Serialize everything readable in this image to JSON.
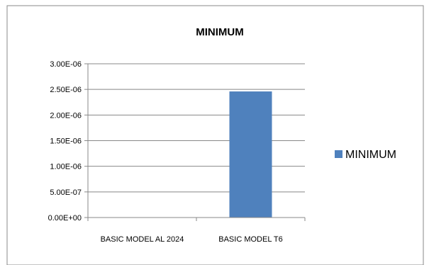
{
  "chart_data": {
    "type": "bar",
    "title": "MINIMUM",
    "categories": [
      "BASIC MODEL AL 2024",
      "BASIC MODEL T6"
    ],
    "series": [
      {
        "name": "MINIMUM",
        "values": [
          0,
          2.46e-06
        ],
        "color": "#4F81BD"
      }
    ],
    "yticks": [
      "0.00E+00",
      "5.00E-07",
      "1.00E-06",
      "1.50E-06",
      "2.00E-06",
      "2.50E-06",
      "3.00E-06"
    ],
    "ylim": [
      0,
      3e-06
    ],
    "grid": true,
    "legend": "right",
    "xlabel": "",
    "ylabel": ""
  }
}
